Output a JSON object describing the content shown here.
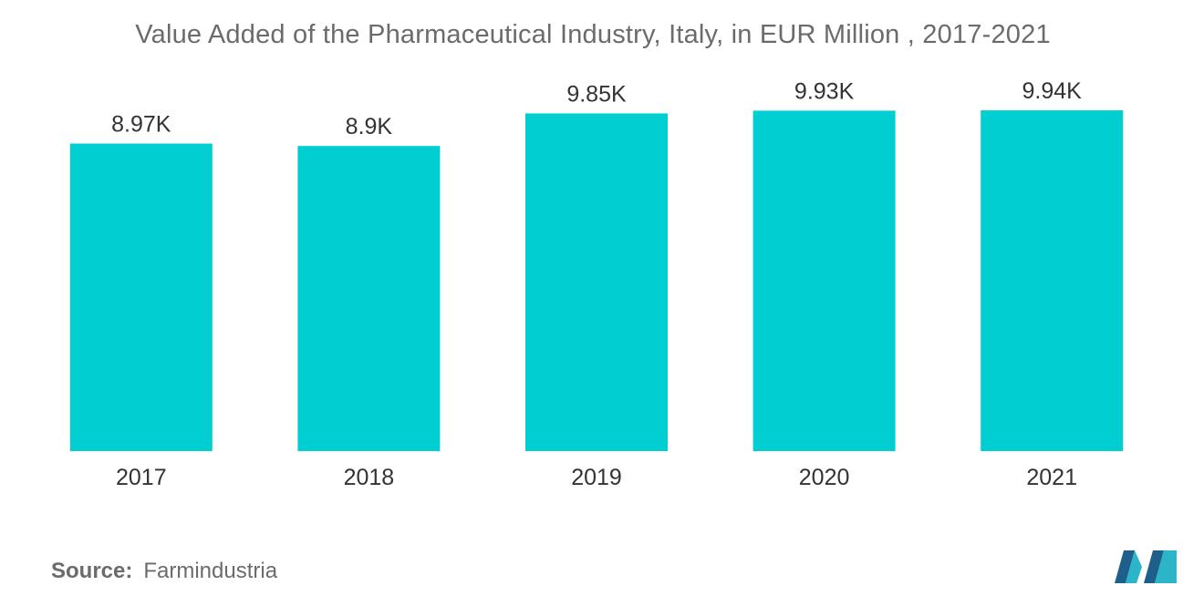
{
  "chart_data": {
    "type": "bar",
    "title": "Value Added of the Pharmaceutical Industry, Italy, in EUR Million , 2017-2021",
    "categories": [
      "2017",
      "2018",
      "2019",
      "2020",
      "2021"
    ],
    "values": [
      8970,
      8900,
      9850,
      9930,
      9940
    ],
    "data_labels": [
      "8.97K",
      "8.9K",
      "9.85K",
      "9.93K",
      "9.94K"
    ],
    "xlabel": "",
    "ylabel": "",
    "ylim": [
      0,
      10500
    ],
    "grid": false,
    "legend": "none",
    "bar_color": "#00CED1"
  },
  "source": {
    "label": "Source:",
    "value": "Farmindustria"
  },
  "colors": {
    "title_text": "#6b6b6b",
    "label_text": "#333333",
    "logo_dark": "#1f5f8b",
    "logo_light": "#2bb5c8"
  },
  "logo": {
    "icon": "mordor-intelligence-logo-icon"
  }
}
